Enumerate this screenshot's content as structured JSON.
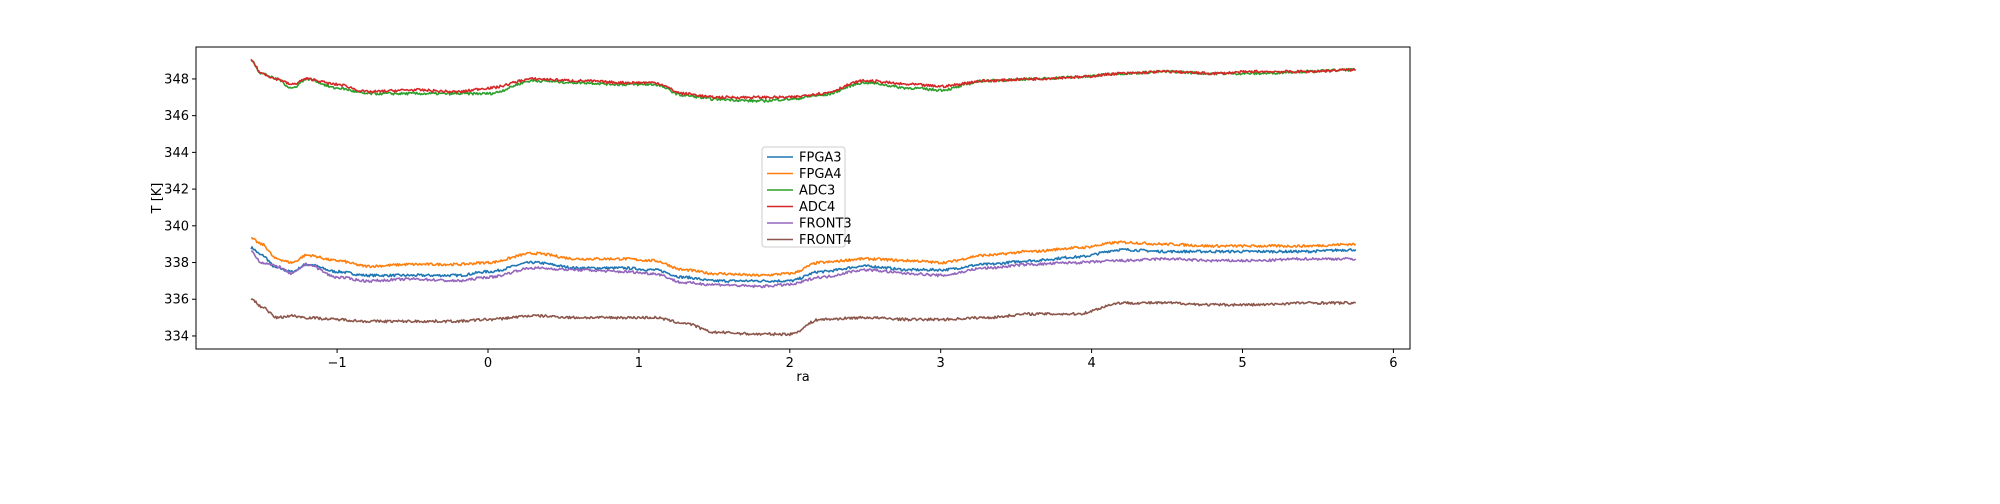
{
  "chart_data": {
    "type": "line",
    "title": "",
    "xlabel": "ra",
    "ylabel": "T [K]",
    "xlim": [
      -1.935,
      6.11
    ],
    "ylim": [
      333.29,
      349.74
    ],
    "xticks": [
      -1,
      0,
      1,
      2,
      3,
      4,
      5,
      6
    ],
    "xtick_labels": [
      "−1",
      "0",
      "1",
      "2",
      "3",
      "4",
      "5",
      "6"
    ],
    "yticks": [
      334,
      336,
      338,
      340,
      342,
      344,
      346,
      348
    ],
    "ytick_labels": [
      "334",
      "336",
      "338",
      "340",
      "342",
      "344",
      "346",
      "348"
    ],
    "grid": false,
    "legend_placement": "center",
    "x": [
      -1.57,
      -1.5,
      -1.4,
      -1.3,
      -1.2,
      -1.0,
      -0.8,
      -0.5,
      -0.2,
      0,
      0.3,
      0.6,
      0.9,
      1.1,
      1.3,
      1.5,
      1.8,
      2.0,
      2.2,
      2.5,
      2.8,
      3.0,
      3.3,
      3.6,
      3.9,
      4.2,
      4.5,
      4.8,
      5.1,
      5.4,
      5.75
    ],
    "series": [
      {
        "name": "FPGA3",
        "color": "#1f77b4",
        "values": [
          338.8,
          338.4,
          337.7,
          337.5,
          337.9,
          337.5,
          337.3,
          337.3,
          337.3,
          337.5,
          338.0,
          337.7,
          337.7,
          337.6,
          337.2,
          337.0,
          337.0,
          337.0,
          337.5,
          337.8,
          337.6,
          337.6,
          337.9,
          338.1,
          338.3,
          338.7,
          338.6,
          338.6,
          338.6,
          338.6,
          338.7
        ]
      },
      {
        "name": "FPGA4",
        "color": "#ff7f0e",
        "values": [
          339.3,
          339.0,
          338.2,
          338.0,
          338.4,
          338.1,
          337.8,
          337.9,
          337.9,
          338.0,
          338.5,
          338.2,
          338.2,
          338.1,
          337.6,
          337.4,
          337.3,
          337.4,
          338.0,
          338.2,
          338.1,
          338.0,
          338.4,
          338.6,
          338.8,
          339.1,
          339.0,
          338.9,
          338.9,
          338.9,
          339.0
        ]
      },
      {
        "name": "ADC3",
        "color": "#2ca02c",
        "values": [
          349.0,
          348.3,
          348.0,
          347.5,
          348.0,
          347.5,
          347.2,
          347.2,
          347.2,
          347.2,
          347.9,
          347.8,
          347.7,
          347.7,
          347.1,
          346.9,
          346.8,
          346.9,
          347.1,
          347.8,
          347.5,
          347.4,
          347.9,
          348.0,
          348.1,
          348.3,
          348.4,
          348.3,
          348.3,
          348.4,
          348.5
        ]
      },
      {
        "name": "ADC4",
        "color": "#d62728",
        "values": [
          349.0,
          348.3,
          348.0,
          347.7,
          348.0,
          347.7,
          347.3,
          347.4,
          347.3,
          347.5,
          348.0,
          347.9,
          347.8,
          347.8,
          347.2,
          347.0,
          347.0,
          347.0,
          347.2,
          347.9,
          347.7,
          347.6,
          347.9,
          348.0,
          348.1,
          348.3,
          348.4,
          348.3,
          348.4,
          348.4,
          348.5
        ]
      },
      {
        "name": "FRONT3",
        "color": "#9467bd",
        "values": [
          338.6,
          338.0,
          337.8,
          337.4,
          337.9,
          337.2,
          337.0,
          337.1,
          337.0,
          337.2,
          337.7,
          337.6,
          337.5,
          337.4,
          336.9,
          336.8,
          336.7,
          336.8,
          337.2,
          337.6,
          337.4,
          337.3,
          337.7,
          337.9,
          338.0,
          338.1,
          338.2,
          338.1,
          338.1,
          338.2,
          338.2
        ]
      },
      {
        "name": "FRONT4",
        "color": "#8c564b",
        "values": [
          336.0,
          335.6,
          335.0,
          335.1,
          335.0,
          334.9,
          334.8,
          334.8,
          334.8,
          334.9,
          335.1,
          335.0,
          335.0,
          335.0,
          334.7,
          334.2,
          334.1,
          334.1,
          334.9,
          335.0,
          334.9,
          334.9,
          335.0,
          335.2,
          335.2,
          335.8,
          335.8,
          335.7,
          335.7,
          335.8,
          335.8
        ]
      }
    ]
  }
}
